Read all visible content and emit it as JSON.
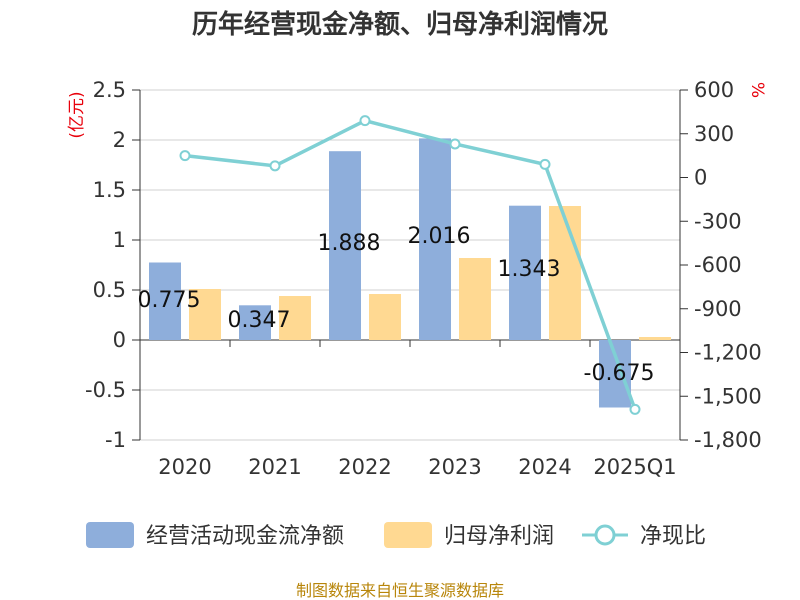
{
  "chart_data": {
    "type": "bar",
    "title": "历年经营现金净额、归母净利润情况",
    "categories": [
      "2020",
      "2021",
      "2022",
      "2023",
      "2024",
      "2025Q1"
    ],
    "left_axis": {
      "unit": "(亿元)",
      "ylim": [
        -1,
        2.5
      ],
      "ticks": [
        2.5,
        2,
        1.5,
        1,
        0.5,
        0,
        -0.5,
        -1
      ],
      "tick_labels": [
        "2.5",
        "2",
        "1.5",
        "1",
        "0.5",
        "0",
        "-0.5",
        "-1"
      ]
    },
    "right_axis": {
      "unit": "%",
      "ylim": [
        -1800,
        600
      ],
      "ticks": [
        600,
        300,
        0,
        -300,
        -600,
        -900,
        -1200,
        -1500,
        -1800
      ],
      "tick_labels": [
        "600",
        "300",
        "0",
        "-300",
        "-600",
        "-900",
        "-1,200",
        "-1,500",
        "-1,800"
      ]
    },
    "series": [
      {
        "name": "经营活动现金流净额",
        "type": "bar",
        "color": "#8eaedb",
        "axis": "left",
        "values": [
          0.775,
          0.347,
          1.888,
          2.016,
          1.343,
          -0.675
        ],
        "labels": [
          "0.775",
          "0.347",
          "1.888",
          "2.016",
          "1.343",
          "-0.675"
        ]
      },
      {
        "name": "归母净利润",
        "type": "bar",
        "color": "#ffd992",
        "axis": "left",
        "values": [
          0.51,
          0.44,
          0.46,
          0.82,
          1.34,
          0.03
        ]
      },
      {
        "name": "净现比",
        "type": "line",
        "color": "#7fd0d4",
        "axis": "right",
        "values": [
          150,
          80,
          390,
          230,
          90,
          -1590
        ]
      }
    ],
    "legend_position": "bottom",
    "grid": true
  },
  "footer": {
    "source": "制图数据来自恒生聚源数据库"
  }
}
